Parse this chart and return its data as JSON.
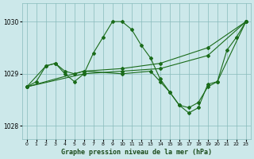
{
  "title": "Graphe pression niveau de la mer (hPa)",
  "background_color": "#cce8ea",
  "grid_color": "#88bbbb",
  "line_color": "#1a6b1a",
  "ylim": [
    1027.75,
    1030.35
  ],
  "yticks": [
    1028,
    1029,
    1030
  ],
  "xlim": [
    -0.5,
    23.5
  ],
  "xticks": [
    0,
    1,
    2,
    3,
    4,
    5,
    6,
    7,
    8,
    9,
    10,
    11,
    12,
    13,
    14,
    15,
    16,
    17,
    18,
    19,
    20,
    21,
    22,
    23
  ],
  "series": [
    {
      "x": [
        0,
        1,
        2,
        3,
        4,
        5,
        6,
        7,
        8,
        9,
        10,
        11,
        12,
        13,
        14,
        15,
        16,
        17,
        18,
        19,
        20,
        21,
        22,
        23
      ],
      "y": [
        1028.75,
        1028.85,
        1029.15,
        1029.2,
        1029.0,
        1028.85,
        1029.0,
        1029.4,
        1029.7,
        1030.0,
        1030.0,
        1029.85,
        1029.55,
        1029.3,
        1028.9,
        1028.65,
        1028.4,
        1028.25,
        1028.35,
        1028.8,
        1028.85,
        1029.45,
        1029.7,
        1030.0
      ]
    },
    {
      "x": [
        0,
        2,
        3,
        4,
        5,
        6,
        10,
        13,
        14,
        15,
        16,
        17,
        18,
        19,
        20,
        23
      ],
      "y": [
        1028.75,
        1029.15,
        1029.2,
        1029.05,
        1029.0,
        1029.05,
        1029.0,
        1029.05,
        1028.85,
        1028.65,
        1028.4,
        1028.35,
        1028.45,
        1028.75,
        1028.85,
        1030.0
      ]
    },
    {
      "x": [
        0,
        6,
        10,
        14,
        19,
        23
      ],
      "y": [
        1028.75,
        1029.05,
        1029.1,
        1029.2,
        1029.5,
        1030.0
      ]
    },
    {
      "x": [
        0,
        6,
        10,
        14,
        19,
        23
      ],
      "y": [
        1028.75,
        1029.0,
        1029.05,
        1029.1,
        1029.35,
        1030.0
      ]
    }
  ]
}
